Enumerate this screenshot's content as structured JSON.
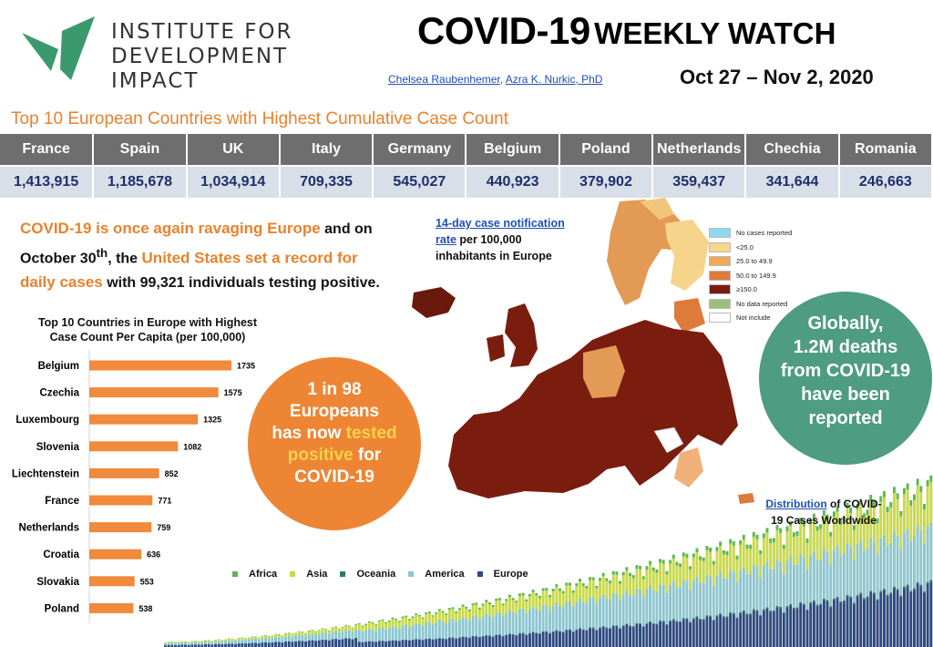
{
  "header": {
    "org_name_lines": [
      "INSTITUTE FOR",
      "DEVELOPMENT",
      "IMPACT"
    ],
    "title_main": "COVID-19",
    "title_sub": "WEEKLY WATCH",
    "author1": "Chelsea Raubenhemer",
    "author_sep": ", ",
    "author2": "Azra K. Nurkic, PhD",
    "dates": "Oct 27 – Nov 2, 2020"
  },
  "section_title": "Top 10 European Countries with Highest Cumulative Case Count",
  "top_countries": [
    {
      "name": "France",
      "cases": "1,413,915"
    },
    {
      "name": "Spain",
      "cases": "1,185,678"
    },
    {
      "name": "UK",
      "cases": "1,034,914"
    },
    {
      "name": "Italy",
      "cases": "709,335"
    },
    {
      "name": "Germany",
      "cases": "545,027"
    },
    {
      "name": "Belgium",
      "cases": "440,923"
    },
    {
      "name": "Poland",
      "cases": "379,902"
    },
    {
      "name": "Netherlands",
      "cases": "359,437"
    },
    {
      "name": "Chechia",
      "cases": "341,644"
    },
    {
      "name": "Romania",
      "cases": "246,663"
    }
  ],
  "intro": {
    "p1_orange": "COVID-19 is once again ravaging Europe",
    "p1_black": " and on October 30",
    "p1_sup": "th",
    "p1_black2": ", the ",
    "p1_orange2": "United States set a record for daily cases",
    "p1_black3": " with 99,321 individuals testing positive."
  },
  "circle_orange": {
    "line1": "1 in 98",
    "line2": "Europeans",
    "line3a": "has now ",
    "line3b": "tested",
    "line4a": "positive",
    "line4b": " for",
    "line5": "COVID-19"
  },
  "circle_green": {
    "lines": [
      "Globally,",
      "1.2M deaths",
      "from COVID-19",
      "have been",
      "reported"
    ]
  },
  "map": {
    "caption_link": "14-day case notification rate",
    "caption_rest": " per 100,000 inhabitants in Europe",
    "legend": [
      {
        "label": "No cases reported",
        "color": "#8fd8ef"
      },
      {
        "label": "<25.0",
        "color": "#f8d58a"
      },
      {
        "label": "25.0 to 49.9",
        "color": "#f0a95a"
      },
      {
        "label": "50.0 to 149.9",
        "color": "#de7a3a"
      },
      {
        "label": "≥150.0",
        "color": "#7a1d0f"
      },
      {
        "label": "No data reported",
        "color": "#9cbf7a"
      },
      {
        "label": "Not include",
        "color": "#ffffff"
      }
    ]
  },
  "chart_data": [
    {
      "type": "bar",
      "title": "Top 10 Countries in Europe with Highest Case Count Per Capita (per 100,000)",
      "orientation": "horizontal",
      "categories": [
        "Belgium",
        "Czechia",
        "Luxembourg",
        "Slovenia",
        "Liechtenstein",
        "France",
        "Netherlands",
        "Croatia",
        "Slovakia",
        "Poland"
      ],
      "values": [
        1735,
        1575,
        1325,
        1082,
        852,
        771,
        759,
        636,
        553,
        538
      ],
      "color": "#f08a3c",
      "xlim": [
        0,
        1735
      ]
    },
    {
      "type": "bar",
      "stacked": true,
      "caption_link": "Distribution",
      "caption_rest": " of COVID-19 Cases Worldwide",
      "series": [
        {
          "name": "Africa",
          "color": "#5cb84e"
        },
        {
          "name": "Asia",
          "color": "#c9d94a"
        },
        {
          "name": "Oceania",
          "color": "#2c7a6a"
        },
        {
          "name": "America",
          "color": "#8ec5cf"
        },
        {
          "name": "Europe",
          "color": "#2e4a80"
        }
      ]
    }
  ]
}
